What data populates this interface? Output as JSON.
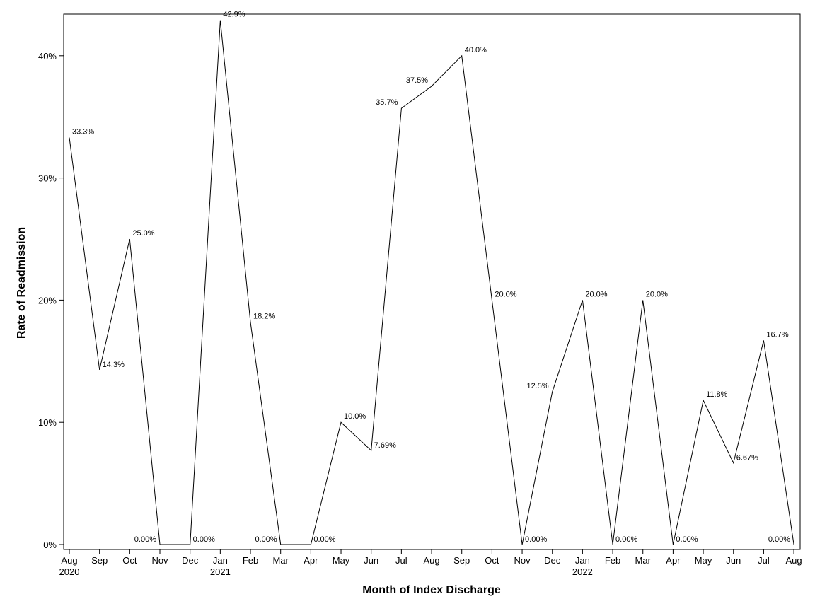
{
  "chart_data": {
    "type": "line",
    "xlabel": "Month of Index Discharge",
    "ylabel": "Rate of Readmission",
    "ylim": [
      0,
      43.5
    ],
    "y_ticks": [
      0,
      10,
      20,
      30,
      40
    ],
    "y_tick_labels": [
      "0%",
      "10%",
      "20%",
      "30%",
      "40%"
    ],
    "grid": false,
    "x": [
      "Aug 2020",
      "Sep 2020",
      "Oct 2020",
      "Nov 2020",
      "Dec 2020",
      "Jan 2021",
      "Feb 2021",
      "Mar 2021",
      "Apr 2021",
      "May 2021",
      "Jun 2021",
      "Jul 2021",
      "Aug 2021",
      "Sep 2021",
      "Oct 2021",
      "Nov 2021",
      "Dec 2021",
      "Jan 2022",
      "Feb 2022",
      "Mar 2022",
      "Apr 2022",
      "May 2022",
      "Jun 2022",
      "Jul 2022",
      "Aug 2022"
    ],
    "x_tick_labels": [
      "Aug",
      "Sep",
      "Oct",
      "Nov",
      "Dec",
      "Jan",
      "Feb",
      "Mar",
      "Apr",
      "May",
      "Jun",
      "Jul",
      "Aug",
      "Sep",
      "Oct",
      "Nov",
      "Dec",
      "Jan",
      "Feb",
      "Mar",
      "Apr",
      "May",
      "Jun",
      "Jul",
      "Aug"
    ],
    "x_year_labels": [
      "2020",
      "",
      "",
      "",
      "",
      "2021",
      "",
      "",
      "",
      "",
      "",
      "",
      "",
      "",
      "",
      "",
      "",
      "2022",
      "",
      "",
      "",
      "",
      "",
      "",
      ""
    ],
    "series": [
      {
        "values": [
          33.3,
          14.3,
          25.0,
          0,
          0,
          42.9,
          18.2,
          0,
          0,
          10.0,
          7.69,
          35.7,
          37.5,
          40.0,
          20.0,
          0,
          12.5,
          20.0,
          0,
          20.0,
          0,
          11.8,
          6.67,
          16.7,
          0
        ],
        "labels": [
          "33.3%",
          "14.3%",
          "25.0%",
          "0.00%",
          "0.00%",
          "42.9%",
          "18.2%",
          "0.00%",
          "0.00%",
          "10.0%",
          "7.69%",
          "35.7%",
          "37.5%",
          "40.0%",
          "20.0%",
          "0.00%",
          "12.5%",
          "20.0%",
          "0.00%",
          "20.0%",
          "0.00%",
          "11.8%",
          "6.67%",
          "16.7%",
          "0.00%"
        ]
      }
    ]
  }
}
